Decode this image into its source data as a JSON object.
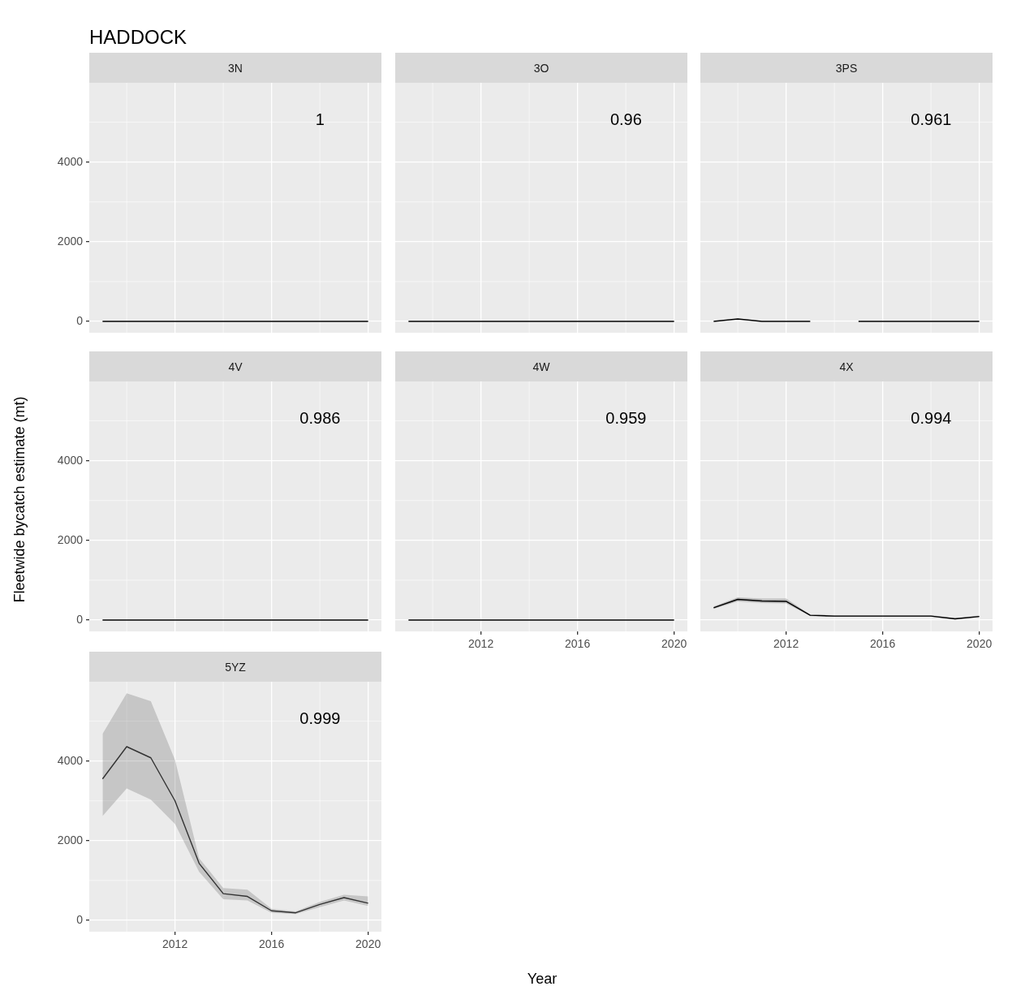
{
  "chart_data": [
    {
      "type": "line",
      "title": "HADDOCK",
      "subtitle": "3N",
      "x": [
        2009,
        2010,
        2011,
        2012,
        2013,
        2014,
        2015,
        2016,
        2017,
        2018,
        2019,
        2020
      ],
      "xlim": [
        2008.45,
        2020.55
      ],
      "xticks": [
        2012,
        2016,
        2020
      ],
      "ylim": [
        -285,
        5990
      ],
      "yticks": [
        0,
        2000,
        4000
      ],
      "grid": true,
      "tick_labels": "y",
      "series": [
        {
          "color": "#000000",
          "values": [
            0,
            0,
            0,
            0,
            0,
            0,
            0,
            0,
            0,
            0,
            0,
            0
          ]
        }
      ],
      "annotations": [
        "1"
      ]
    },
    {
      "type": "line",
      "title": "3O",
      "x": [
        2009,
        2010,
        2011,
        2012,
        2013,
        2014,
        2015,
        2016,
        2017,
        2018,
        2019,
        2020
      ],
      "xlim": [
        2008.45,
        2020.55
      ],
      "xticks": [
        2012,
        2016,
        2020
      ],
      "ylim": [
        -285,
        5990
      ],
      "yticks": [
        0,
        2000,
        4000
      ],
      "grid": true,
      "tick_labels": false,
      "series": [
        {
          "color": "#000000",
          "values": [
            0,
            0,
            0,
            0,
            0,
            0,
            0,
            0,
            0,
            0,
            0,
            0
          ]
        }
      ],
      "annotations": [
        "0.96"
      ]
    },
    {
      "type": "line",
      "title": "3PS",
      "x": [
        2009,
        2010,
        2011,
        2012,
        2013,
        2014,
        2015,
        2016,
        2017,
        2018,
        2019,
        2020
      ],
      "xlim": [
        2008.45,
        2020.55
      ],
      "xticks": [
        2012,
        2016,
        2020
      ],
      "ylim": [
        -285,
        5990
      ],
      "yticks": [
        0,
        2000,
        4000
      ],
      "grid": true,
      "tick_labels": false,
      "series": [
        {
          "color": "#000000",
          "values": [
            0,
            60,
            0,
            0,
            0,
            null,
            0,
            0,
            0,
            0,
            0,
            0
          ]
        }
      ],
      "annotations": [
        "0.961"
      ]
    },
    {
      "type": "line",
      "title": "4V",
      "ylabel": "Fleetwide bycatch estimate (mt)",
      "x": [
        2009,
        2010,
        2011,
        2012,
        2013,
        2014,
        2015,
        2016,
        2017,
        2018,
        2019,
        2020
      ],
      "xlim": [
        2008.45,
        2020.55
      ],
      "xticks": [
        2012,
        2016,
        2020
      ],
      "ylim": [
        -285,
        5990
      ],
      "yticks": [
        0,
        2000,
        4000
      ],
      "grid": true,
      "tick_labels": "y",
      "series": [
        {
          "color": "#000000",
          "values": [
            0,
            0,
            0,
            0,
            0,
            0,
            0,
            0,
            0,
            0,
            0,
            0
          ]
        }
      ],
      "annotations": [
        "0.986"
      ]
    },
    {
      "type": "line",
      "title": "4W",
      "xlabel": "Year",
      "x": [
        2009,
        2010,
        2011,
        2012,
        2013,
        2014,
        2015,
        2016,
        2017,
        2018,
        2019,
        2020
      ],
      "xlim": [
        2008.45,
        2020.55
      ],
      "xticks": [
        2012,
        2016,
        2020
      ],
      "ylim": [
        -285,
        5990
      ],
      "yticks": [
        0,
        2000,
        4000
      ],
      "grid": true,
      "tick_labels": "x",
      "series": [
        {
          "color": "#000000",
          "values": [
            0,
            0,
            0,
            0,
            0,
            0,
            0,
            0,
            0,
            0,
            0,
            0
          ]
        }
      ],
      "annotations": [
        "0.959"
      ]
    },
    {
      "type": "line",
      "title": "4X",
      "x": [
        2009,
        2010,
        2011,
        2012,
        2013,
        2014,
        2015,
        2016,
        2017,
        2018,
        2019,
        2020
      ],
      "xlim": [
        2008.45,
        2020.55
      ],
      "xticks": [
        2012,
        2016,
        2020
      ],
      "ylim": [
        -285,
        5990
      ],
      "yticks": [
        0,
        2000,
        4000
      ],
      "grid": true,
      "tick_labels": "x",
      "series": [
        {
          "color": "#000000",
          "values": [
            310,
            520,
            480,
            470,
            120,
            100,
            100,
            100,
            100,
            100,
            30,
            90
          ],
          "lower": [
            280,
            470,
            430,
            420,
            100,
            80,
            80,
            80,
            80,
            80,
            10,
            70
          ],
          "upper": [
            340,
            570,
            540,
            540,
            140,
            120,
            120,
            120,
            120,
            120,
            50,
            110
          ]
        }
      ],
      "annotations": [
        "0.994"
      ]
    },
    {
      "type": "line",
      "title": "5YZ",
      "x": [
        2009,
        2010,
        2011,
        2012,
        2013,
        2014,
        2015,
        2016,
        2017,
        2018,
        2019,
        2020
      ],
      "xlim": [
        2008.45,
        2020.55
      ],
      "xticks": [
        2012,
        2016,
        2020
      ],
      "ylim": [
        -285,
        5990
      ],
      "yticks": [
        0,
        2000,
        4000
      ],
      "grid": true,
      "series": [
        {
          "color": "#333333",
          "values": [
            3550,
            4360,
            4080,
            3000,
            1430,
            670,
            600,
            240,
            190,
            400,
            570,
            430
          ],
          "lower": [
            2620,
            3310,
            3030,
            2420,
            1220,
            530,
            500,
            190,
            160,
            330,
            500,
            360
          ],
          "upper": [
            4680,
            5700,
            5500,
            4030,
            1560,
            810,
            770,
            290,
            225,
            465,
            640,
            600
          ]
        }
      ],
      "annotations": [
        "0.999"
      ]
    }
  ]
}
